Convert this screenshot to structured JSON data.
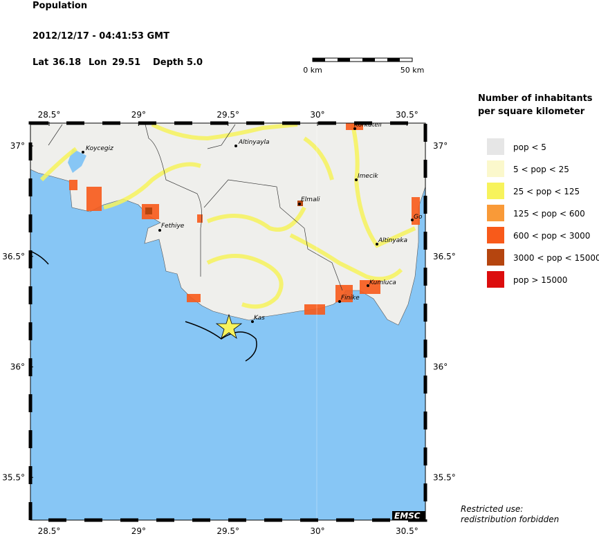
{
  "header": {
    "title": "Population",
    "datetime": "2012/12/17 - 04:41:53 GMT",
    "location": [
      {
        "label": "Lat",
        "value": "36.18"
      },
      {
        "label": "Lon",
        "value": "29.51"
      },
      {
        "label": "Depth",
        "value": "5.0"
      }
    ],
    "scale": [
      "0 km",
      "50 km"
    ]
  },
  "map": {
    "lon_ticks": [
      {
        "value": 28.5,
        "label": "28.5°"
      },
      {
        "value": 29,
        "label": "29°"
      },
      {
        "value": 29.5,
        "label": "29.5°"
      },
      {
        "value": 30,
        "label": "30°"
      },
      {
        "value": 30.5,
        "label": "30.5°"
      }
    ],
    "lat_ticks": [
      {
        "value": 37,
        "label": "37°"
      },
      {
        "value": 36.5,
        "label": "36.5°"
      },
      {
        "value": 36,
        "label": "36°"
      },
      {
        "value": 35.5,
        "label": "35.5°"
      }
    ],
    "towns": [
      "Koycegiz",
      "Altinyayla",
      "Korkuteli",
      "Imecik",
      "Elmali",
      "Fethiye",
      "Altinyaka",
      "Kumluca",
      "Finike",
      "Kas",
      "Go"
    ],
    "credit": "EMSC"
  },
  "legend": {
    "title": [
      "Number of inhabitants",
      "per square kilometer"
    ],
    "items": [
      {
        "label": "pop < 5",
        "color": "#e6e6e6"
      },
      {
        "label": "5 < pop < 25",
        "color": "#fbf8cc"
      },
      {
        "label": "25 < pop < 125",
        "color": "#f7f35c"
      },
      {
        "label": "125 < pop < 600",
        "color": "#f99a38"
      },
      {
        "label": "600 < pop < 3000",
        "color": "#f85a1a"
      },
      {
        "label": "3000 < pop < 15000",
        "color": "#b5450f"
      },
      {
        "label": "pop > 15000",
        "color": "#dc0d0d"
      }
    ]
  },
  "notice": [
    "Restricted use:",
    "redistribution forbidden"
  ]
}
